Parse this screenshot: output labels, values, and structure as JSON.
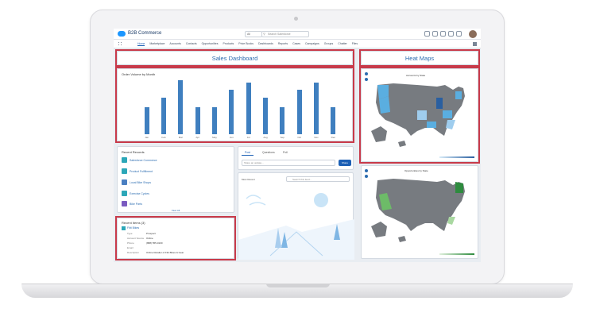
{
  "app": {
    "name": "B2B Commerce"
  },
  "search": {
    "scope": "All",
    "placeholder": "Search Salesforce"
  },
  "nav": {
    "items": [
      {
        "label": "Home"
      },
      {
        "label": "Marketplace"
      },
      {
        "label": "Accounts"
      },
      {
        "label": "Contacts"
      },
      {
        "label": "Opportunities"
      },
      {
        "label": "Products"
      },
      {
        "label": "Price Books"
      },
      {
        "label": "Dashboards"
      },
      {
        "label": "Reports"
      },
      {
        "label": "Cases"
      },
      {
        "label": "Campaigns"
      },
      {
        "label": "Groups"
      },
      {
        "label": "Chatter"
      },
      {
        "label": "Files"
      }
    ]
  },
  "sales_dashboard": {
    "title": "Sales Dashboard"
  },
  "orders_chart": {
    "title": "Order Volume by Month"
  },
  "chart_data": {
    "type": "bar",
    "title": "Order Volume by Month",
    "categories": [
      "Jan",
      "Feb",
      "Mar",
      "Apr",
      "May",
      "Jun",
      "Jul",
      "Aug",
      "Sep",
      "Oct",
      "Nov",
      "Dec"
    ],
    "values": [
      50,
      67,
      100,
      50,
      50,
      83,
      95,
      67,
      50,
      83,
      95,
      50
    ],
    "ylim": [
      0,
      100
    ],
    "color": "#3f7fbf",
    "grid": false
  },
  "heat_maps": {
    "title": "Heat Maps",
    "map1_title": "Accounts by State",
    "map2_title": "Opportunities by State",
    "map1_accent": "#5aaee0",
    "map2_accent": "#2e8b3e"
  },
  "recent_records": {
    "title": "Recent Records",
    "items": [
      {
        "label": "Salesforce Commerce",
        "color": "#2ca7b8"
      },
      {
        "label": "Product Fulfillment",
        "color": "#2ca7b8"
      },
      {
        "label": "Local Bike Shops",
        "color": "#4a7fc1"
      },
      {
        "label": "Exercise Cycles",
        "color": "#2ca7b8"
      },
      {
        "label": "Bike Parts",
        "color": "#7b5bc0"
      }
    ],
    "view_all": "View All"
  },
  "recent_items": {
    "title": "Recent Items (3)",
    "record_title": "Fitti Bikes",
    "fields": [
      {
        "label": "Type",
        "value": "Prospect"
      },
      {
        "label": "Account Source",
        "value": "Online"
      },
      {
        "label": "Phone",
        "value": "(888) 555-0100"
      },
      {
        "label": "Email",
        "value": ""
      },
      {
        "label": "Description",
        "value": "Online Retailer of Fitti Bikes & Gear"
      }
    ]
  },
  "feed": {
    "tabs": [
      "Post",
      "Questions",
      "Poll"
    ],
    "placeholder": "Share an update...",
    "share_button": "Share",
    "filter_label": "Most Recent",
    "search_placeholder": "Search this feed..."
  }
}
